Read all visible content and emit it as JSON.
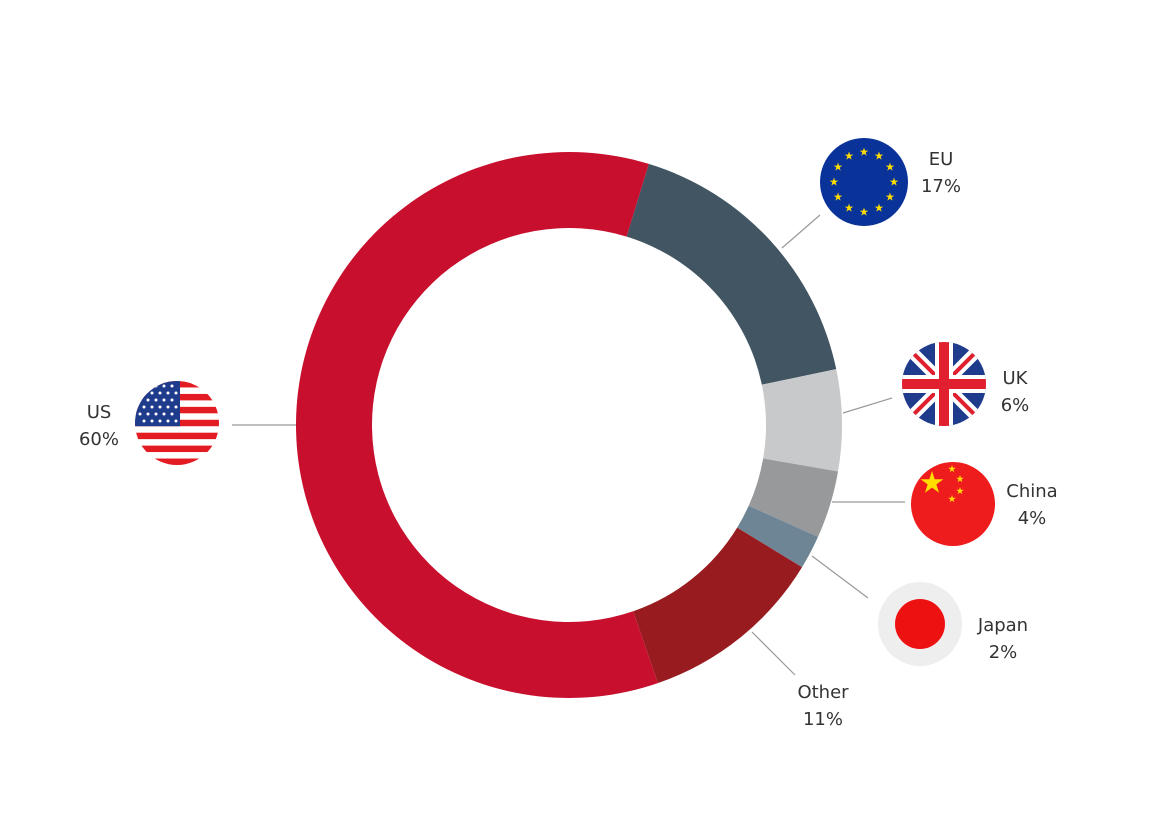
{
  "chart_data": {
    "type": "donut",
    "categories": [
      "EU",
      "UK",
      "China",
      "Japan",
      "Other",
      "US"
    ],
    "values": [
      17,
      6,
      4,
      2,
      11,
      60
    ],
    "value_labels": [
      "17%",
      "6%",
      "4%",
      "2%",
      "11%",
      "60%"
    ],
    "colors": [
      "#415563",
      "#c8c9ca",
      "#97999b",
      "#6e8596",
      "#971b1f",
      "#c8102e"
    ]
  }
}
